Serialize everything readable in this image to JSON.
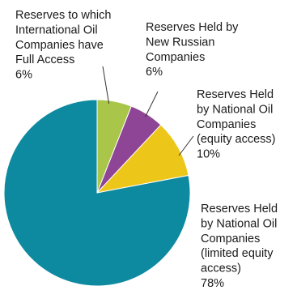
{
  "chart_data": {
    "type": "pie",
    "title": "",
    "slices": [
      {
        "lines": [
          "Reserves Held",
          "by National Oil",
          "Companies",
          "(limited equity",
          "access)"
        ],
        "pct_label": "78%",
        "value": 78,
        "color": "#0e8aa0"
      },
      {
        "lines": [
          "Reserves to which",
          "International Oil",
          "Companies have",
          "Full Access"
        ],
        "pct_label": "6%",
        "value": 6,
        "color": "#a9c64a"
      },
      {
        "lines": [
          "Reserves Held by",
          "New Russian",
          "Companies"
        ],
        "pct_label": "6%",
        "value": 6,
        "color": "#8e4595"
      },
      {
        "lines": [
          "Reserves Held",
          "by National Oil",
          "Companies",
          "(equity access)"
        ],
        "pct_label": "10%",
        "value": 10,
        "color": "#edc61a"
      }
    ]
  }
}
